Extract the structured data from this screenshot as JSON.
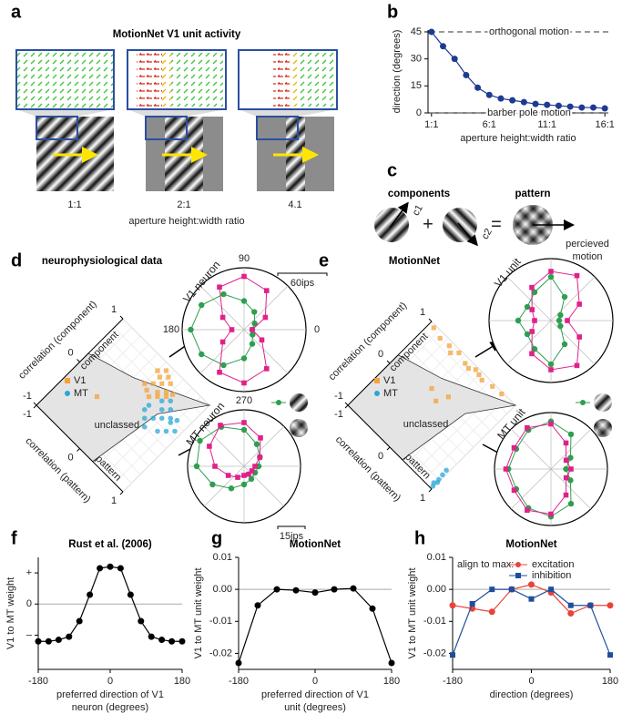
{
  "panel_a": {
    "letter": "a",
    "title": "MotionNet V1 unit activity",
    "ratios": [
      "1:1",
      "2:1",
      "4.1"
    ],
    "xlabel": "aperture height:width ratio"
  },
  "panel_c": {
    "letter": "c",
    "components": "components",
    "pattern": "pattern",
    "plus": "+",
    "equals": "=",
    "vector_labels": [
      "c1",
      "c2"
    ],
    "perceived": [
      "percieved",
      "motion"
    ]
  },
  "chart_data": [
    {
      "type": "line",
      "panel": "b",
      "xlabel": [
        "aperture height:width ratio"
      ],
      "ylabel": "direction (degrees)",
      "x": [
        1,
        2,
        3,
        4,
        5,
        6,
        7,
        8,
        9,
        10,
        11,
        12,
        13,
        14,
        15,
        16
      ],
      "series": [
        {
          "color": "#1f3a93",
          "marker": "circle",
          "values": [
            45,
            37,
            30,
            21,
            14,
            10,
            8,
            7,
            6,
            5,
            4.5,
            4,
            3.5,
            3,
            3,
            2.5
          ]
        }
      ],
      "xlim": [
        0.7,
        16.3
      ],
      "ylim": [
        0,
        46
      ],
      "xticks": [
        {
          "value": 1,
          "label": "1:1"
        },
        {
          "value": 6,
          "label": "6:1"
        },
        {
          "value": 11,
          "label": "11:1"
        },
        {
          "value": 16,
          "label": "16:1"
        }
      ],
      "yticks": [
        0,
        15,
        30,
        45
      ],
      "annotations": [
        {
          "value": 45,
          "label": "orthogonal motion"
        },
        {
          "value": 0,
          "label": "barber pole motion"
        }
      ]
    },
    {
      "type": "scatter",
      "panel": "d",
      "title": "neurophysiological data",
      "xlabel": "correlation (component)",
      "ylabel": "correlation (pattern)",
      "xlim": [
        -1,
        1
      ],
      "ylim": [
        -1,
        1
      ],
      "xticks": [
        -1,
        0,
        1
      ],
      "yticks": [
        -1,
        0,
        1
      ],
      "annotations": [
        "component",
        "pattern",
        "unclassed"
      ],
      "series": [
        {
          "name": "V1",
          "color": "#f4a23a",
          "marker": "square",
          "x": [
            0.7,
            0.6,
            0.8,
            0.5,
            0.65,
            0.75,
            0.55,
            0.85,
            0.6,
            0.45,
            0.7,
            0.9,
            0.5,
            0.4,
            0.8,
            -0.2
          ],
          "values": [
            0.2,
            0.1,
            0.3,
            0.0,
            0.35,
            0.1,
            0.25,
            0.2,
            0.4,
            0.1,
            0.45,
            0.1,
            0.3,
            0.2,
            0.0,
            -0.4
          ]
        },
        {
          "name": "MT",
          "color": "#2aa8d8",
          "marker": "circle",
          "x": [
            0.3,
            0.2,
            0.4,
            0.1,
            0.3,
            0.5,
            0.2,
            0.0,
            0.4,
            0.6,
            0.3,
            0.1,
            0.5,
            0.2,
            0.35,
            0.45
          ],
          "values": [
            0.6,
            0.5,
            0.7,
            0.4,
            0.3,
            0.6,
            0.8,
            0.5,
            0.5,
            0.5,
            0.9,
            0.7,
            0.4,
            0.3,
            0.75,
            0.8
          ]
        }
      ]
    },
    {
      "type": "polar",
      "title": "V1 neuron",
      "theta": [
        0,
        30,
        60,
        90,
        120,
        150,
        180,
        210,
        240,
        270,
        300,
        330
      ],
      "thetaticks": [
        0,
        90,
        180,
        270
      ],
      "scale": {
        "value": 60,
        "label": "60ips"
      },
      "series": [
        {
          "color": "#2e9e4f",
          "marker": "circle",
          "values": [
            10,
            15,
            25,
            35,
            50,
            60,
            65,
            60,
            50,
            35,
            20,
            12
          ]
        },
        {
          "color": "#e0218a",
          "marker": "square",
          "values": [
            10,
            30,
            55,
            65,
            60,
            30,
            15,
            30,
            60,
            65,
            55,
            25
          ]
        }
      ]
    },
    {
      "type": "polar",
      "title": "MT neuron",
      "theta": [
        0,
        30,
        60,
        90,
        120,
        150,
        180,
        210,
        240,
        270,
        300,
        330
      ],
      "scale": {
        "value": 15,
        "label": "15ips"
      },
      "series": [
        {
          "color": "#2e9e4f",
          "marker": "circle",
          "values": [
            8,
            10,
            14,
            20,
            25,
            28,
            26,
            20,
            14,
            10,
            8,
            7
          ]
        },
        {
          "color": "#e0218a",
          "marker": "square",
          "values": [
            6,
            10,
            18,
            24,
            26,
            22,
            16,
            10,
            7,
            5,
            5,
            5
          ]
        }
      ]
    },
    {
      "type": "scatter",
      "panel": "e",
      "title": "MotionNet",
      "xlabel": "correlation (component)",
      "ylabel": "correlation (pattern)",
      "xlim": [
        -1,
        1
      ],
      "ylim": [
        -1,
        1
      ],
      "xticks": [
        -1,
        0,
        1
      ],
      "yticks": [
        -1,
        0,
        1
      ],
      "annotations": [
        "component",
        "pattern",
        "unclassed"
      ],
      "series": [
        {
          "name": "V1",
          "color": "#f4a23a",
          "marker": "square",
          "x": [
            0.95,
            0.9,
            0.92,
            0.95,
            0.9,
            0.95,
            0.9,
            0.95,
            0.97,
            0.85,
            0.88,
            0.93,
            0.2,
            0.1,
            0.3
          ],
          "values": [
            -0.9,
            -0.7,
            -0.5,
            -0.3,
            -0.1,
            0.1,
            0.3,
            0.5,
            0.7,
            -0.4,
            0.0,
            0.2,
            -0.2,
            0.0,
            0.1
          ]
        },
        {
          "name": "MT",
          "color": "#2aa8d8",
          "marker": "circle",
          "x": [
            -0.9,
            -0.8,
            -0.7,
            -0.95,
            -0.85,
            -0.6
          ],
          "values": [
            0.95,
            0.97,
            0.96,
            0.98,
            0.99,
            0.95
          ]
        }
      ]
    },
    {
      "type": "polar",
      "title": "V1 unit",
      "theta": [
        0,
        30,
        60,
        90,
        120,
        150,
        180,
        210,
        240,
        270,
        300,
        330
      ],
      "series": [
        {
          "color": "#2e9e4f",
          "marker": "circle",
          "values": [
            0.15,
            0.2,
            0.5,
            0.8,
            0.6,
            0.5,
            0.6,
            0.5,
            0.6,
            0.8,
            0.5,
            0.2
          ]
        },
        {
          "color": "#e0218a",
          "marker": "square",
          "values": [
            0.3,
            0.6,
            0.95,
            0.9,
            0.7,
            0.4,
            0.3,
            0.4,
            0.7,
            0.9,
            0.95,
            0.6
          ]
        }
      ]
    },
    {
      "type": "polar",
      "title": "MT unit",
      "theta": [
        0,
        30,
        60,
        90,
        120,
        150,
        180,
        210,
        240,
        270,
        300,
        330
      ],
      "series": [
        {
          "color": "#2e9e4f",
          "marker": "circle",
          "values": [
            0.3,
            0.45,
            0.8,
            0.95,
            0.9,
            0.8,
            0.85,
            0.8,
            0.9,
            0.95,
            0.8,
            0.45
          ]
        },
        {
          "color": "#e0218a",
          "marker": "square",
          "values": [
            0.4,
            0.35,
            0.6,
            0.9,
            0.95,
            0.85,
            0.9,
            0.85,
            0.95,
            0.9,
            0.6,
            0.35
          ]
        }
      ]
    },
    {
      "type": "line",
      "panel": "f",
      "title": "Rust et al. (2006)",
      "xlabel": [
        "preferred direction of V1",
        "neuron (degrees)"
      ],
      "ylabel": "V1 to MT weight",
      "x": [
        -180,
        -154,
        -129,
        -103,
        -77,
        -51,
        -26,
        0,
        26,
        51,
        77,
        103,
        129,
        154,
        180
      ],
      "series": [
        {
          "color": "#000000",
          "marker": "circle",
          "values": [
            -1.2,
            -1.2,
            -1.15,
            -1.05,
            -0.55,
            0.3,
            1.15,
            1.2,
            1.15,
            0.3,
            -0.55,
            -1.05,
            -1.15,
            -1.2,
            -1.2
          ]
        }
      ],
      "xlim": [
        -180,
        180
      ],
      "ylim": [
        -2.1,
        1.5
      ],
      "xticks": [
        -180,
        0,
        180
      ],
      "yticks": [
        {
          "value": 1,
          "label": "+"
        },
        0,
        {
          "value": -1,
          "label": "–"
        }
      ],
      "zero_line": true
    },
    {
      "type": "line",
      "panel": "g",
      "title": "MotionNet",
      "xlabel": [
        "preferred direction of V1",
        "unit (degrees)"
      ],
      "ylabel": "V1 to MT unit weight",
      "x": [
        -180,
        -135,
        -90,
        -45,
        0,
        45,
        90,
        135,
        180
      ],
      "series": [
        {
          "color": "#000000",
          "marker": "circle",
          "values": [
            -0.023,
            -0.005,
            0.0,
            -0.0003,
            -0.001,
            0.0,
            0.0003,
            -0.006,
            -0.023
          ]
        }
      ],
      "xlim": [
        -180,
        180
      ],
      "ylim": [
        -0.025,
        0.01
      ],
      "xticks": [
        -180,
        0,
        180
      ],
      "yticks": [
        0.01,
        {
          "value": 0,
          "label": "0.00"
        },
        -0.01,
        -0.02
      ],
      "zero_line": true
    },
    {
      "type": "line",
      "panel": "h",
      "title": "MotionNet",
      "xlabel": [
        "direction (degrees)"
      ],
      "ylabel": "V1 to MT unit weight",
      "legend_title": "align to max:",
      "x": [
        -180,
        -135,
        -90,
        -45,
        0,
        45,
        90,
        135,
        180
      ],
      "series": [
        {
          "name": "excitation",
          "color": "#e8443a",
          "marker": "circle",
          "values": [
            -0.005,
            -0.006,
            -0.007,
            0.0,
            0.0015,
            -0.001,
            -0.0075,
            -0.005,
            -0.005
          ]
        },
        {
          "name": "inhibition",
          "color": "#1f4e9c",
          "marker": "square",
          "values": [
            -0.0205,
            -0.0045,
            0.0,
            0.0,
            -0.003,
            0.0,
            -0.005,
            -0.005,
            -0.0205
          ]
        }
      ],
      "xlim": [
        -180,
        180
      ],
      "ylim": [
        -0.025,
        0.01
      ],
      "xticks": [
        -180,
        0,
        180
      ],
      "yticks": [
        0.01,
        {
          "value": 0,
          "label": "0.00"
        },
        -0.01,
        -0.02
      ],
      "zero_line": true
    }
  ]
}
